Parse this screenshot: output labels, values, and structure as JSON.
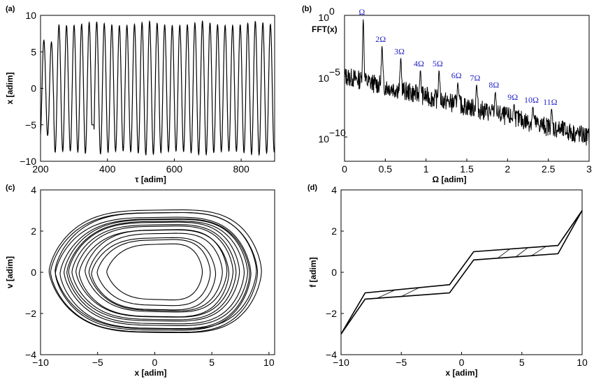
{
  "chart_data": [
    {
      "panel_label": "(a)",
      "type": "line",
      "xlabel": "τ [adim]",
      "ylabel": "x [adim]",
      "xlim": [
        200,
        900
      ],
      "ylim": [
        -10,
        10
      ],
      "xticks": [
        "200",
        "400",
        "600",
        "800"
      ],
      "yticks": [
        "−10",
        "−5",
        "0",
        "5",
        "10"
      ],
      "series": [
        {
          "amplitude": 9.2,
          "cycles": 31
        }
      ]
    },
    {
      "panel_label": "(b)",
      "type": "line",
      "ylabel": "FFT(x)",
      "xlabel": "Ω [adim]",
      "xlim": [
        0,
        3
      ],
      "ylim": [
        1e-12,
        1
      ],
      "yscale": "log",
      "xticks": [
        "0",
        "0.5",
        "1",
        "1.5",
        "2",
        "2.5",
        "3"
      ],
      "yticks": [
        {
          "base": "10",
          "exp": "0",
          "value": 1
        },
        {
          "base": "10",
          "exp": "−5",
          "value": 1e-05
        },
        {
          "base": "10",
          "exp": "−10",
          "value": 1e-10
        }
      ],
      "peaks": [
        {
          "label": "Ω",
          "x": 0.23,
          "y": 0.5
        },
        {
          "label": "2Ω",
          "x": 0.46,
          "y": 0.003
        },
        {
          "label": "3Ω",
          "x": 0.69,
          "y": 0.0003
        },
        {
          "label": "4Ω",
          "x": 0.93,
          "y": 3e-05
        },
        {
          "label": "5Ω",
          "x": 1.16,
          "y": 3e-05
        },
        {
          "label": "6Ω",
          "x": 1.39,
          "y": 3e-06
        },
        {
          "label": "7Ω",
          "x": 1.62,
          "y": 2e-06
        },
        {
          "label": "8Ω",
          "x": 1.85,
          "y": 5e-07
        },
        {
          "label": "9Ω",
          "x": 2.08,
          "y": 5e-08
        },
        {
          "label": "10Ω",
          "x": 2.31,
          "y": 3e-08
        },
        {
          "label": "11Ω",
          "x": 2.54,
          "y": 2e-08
        }
      ],
      "baseline": {
        "start": 1e-05,
        "end": 1e-10
      }
    },
    {
      "panel_label": "(c)",
      "type": "line",
      "xlabel": "x [adim]",
      "ylabel": "v [adim]",
      "xlim": [
        -10,
        10.5
      ],
      "ylim": [
        -4,
        4
      ],
      "xticks": [
        "−10",
        "−5",
        "0",
        "5",
        "10"
      ],
      "yticks": [
        "−4",
        "−2",
        "0",
        "2",
        "4"
      ],
      "orbit_envelope": {
        "x_range": [
          -9.2,
          9.3
        ],
        "v_range": [
          -3.2,
          3.3
        ]
      }
    },
    {
      "panel_label": "(d)",
      "type": "line",
      "xlabel": "x [adim]",
      "ylabel": "f [adim]",
      "xlim": [
        -10,
        10
      ],
      "ylim": [
        -4,
        4
      ],
      "xticks": [
        "−10",
        "−5",
        "0",
        "5",
        "10"
      ],
      "yticks": [
        "−4",
        "−2",
        "0",
        "2",
        "4"
      ],
      "loop": {
        "upper": [
          [
            -10,
            -3
          ],
          [
            -8,
            -1
          ],
          [
            -1,
            -0.6
          ],
          [
            1,
            1
          ],
          [
            8,
            1.3
          ],
          [
            10,
            3
          ]
        ],
        "lower": [
          [
            -10,
            -3
          ],
          [
            -8,
            -1.3
          ],
          [
            -1,
            -1
          ],
          [
            1,
            0.6
          ],
          [
            8,
            0.9
          ],
          [
            10,
            3
          ]
        ]
      }
    }
  ]
}
